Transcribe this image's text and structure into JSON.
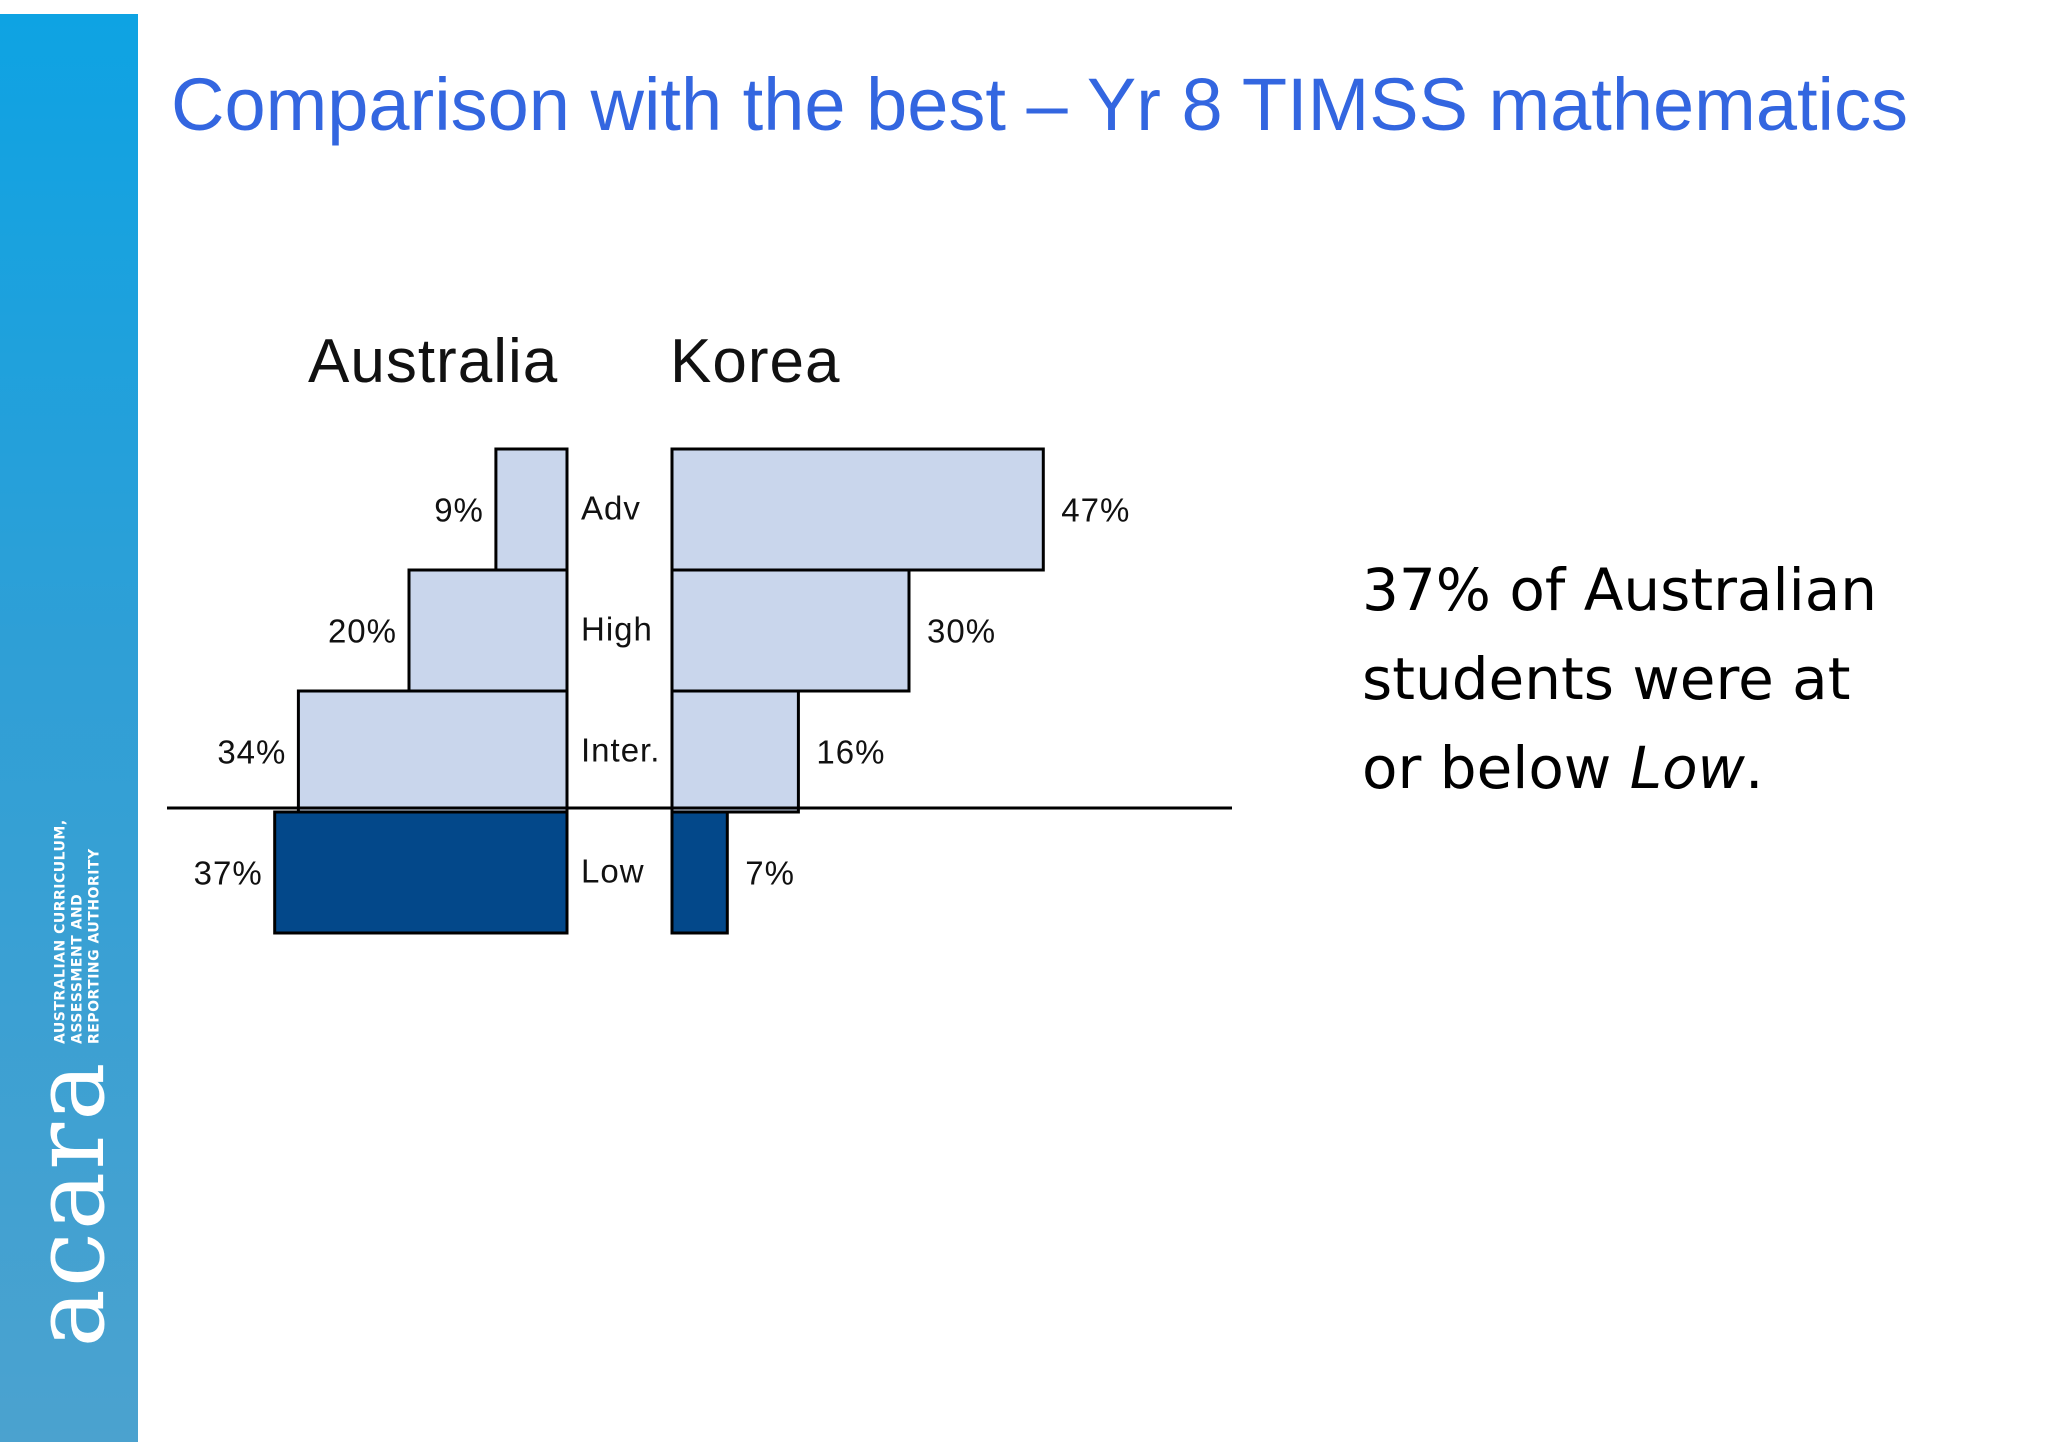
{
  "title": "Comparison with the best – Yr 8 TIMSS mathematics",
  "logo": {
    "wordmark": "acara",
    "tagline": [
      "AUSTRALIAN CURRICULUM,",
      "ASSESSMENT AND",
      "REPORTING AUTHORITY"
    ]
  },
  "note": {
    "text": "37% of Australian students were at or below ",
    "emphasis": "Low",
    "suffix": "."
  },
  "colors": {
    "upper_fill": "#c9d6ec",
    "low_fill": "#03488a",
    "border": "#000000",
    "title": "#3366e0"
  },
  "chart_data": {
    "type": "bar",
    "orientation": "horizontal-diverging",
    "categories": [
      "Adv",
      "High",
      "Inter.",
      "Low"
    ],
    "baseline_between": [
      "Inter.",
      "Low"
    ],
    "series": [
      {
        "name": "Australia",
        "direction": "left",
        "values": [
          9,
          20,
          34,
          37
        ],
        "labels": [
          "9%",
          "20%",
          "34%",
          "37%"
        ]
      },
      {
        "name": "Korea",
        "direction": "right",
        "values": [
          47,
          30,
          16,
          7
        ],
        "labels": [
          "47%",
          "30%",
          "16%",
          "7%"
        ]
      }
    ],
    "unit": "%",
    "grid": false
  }
}
